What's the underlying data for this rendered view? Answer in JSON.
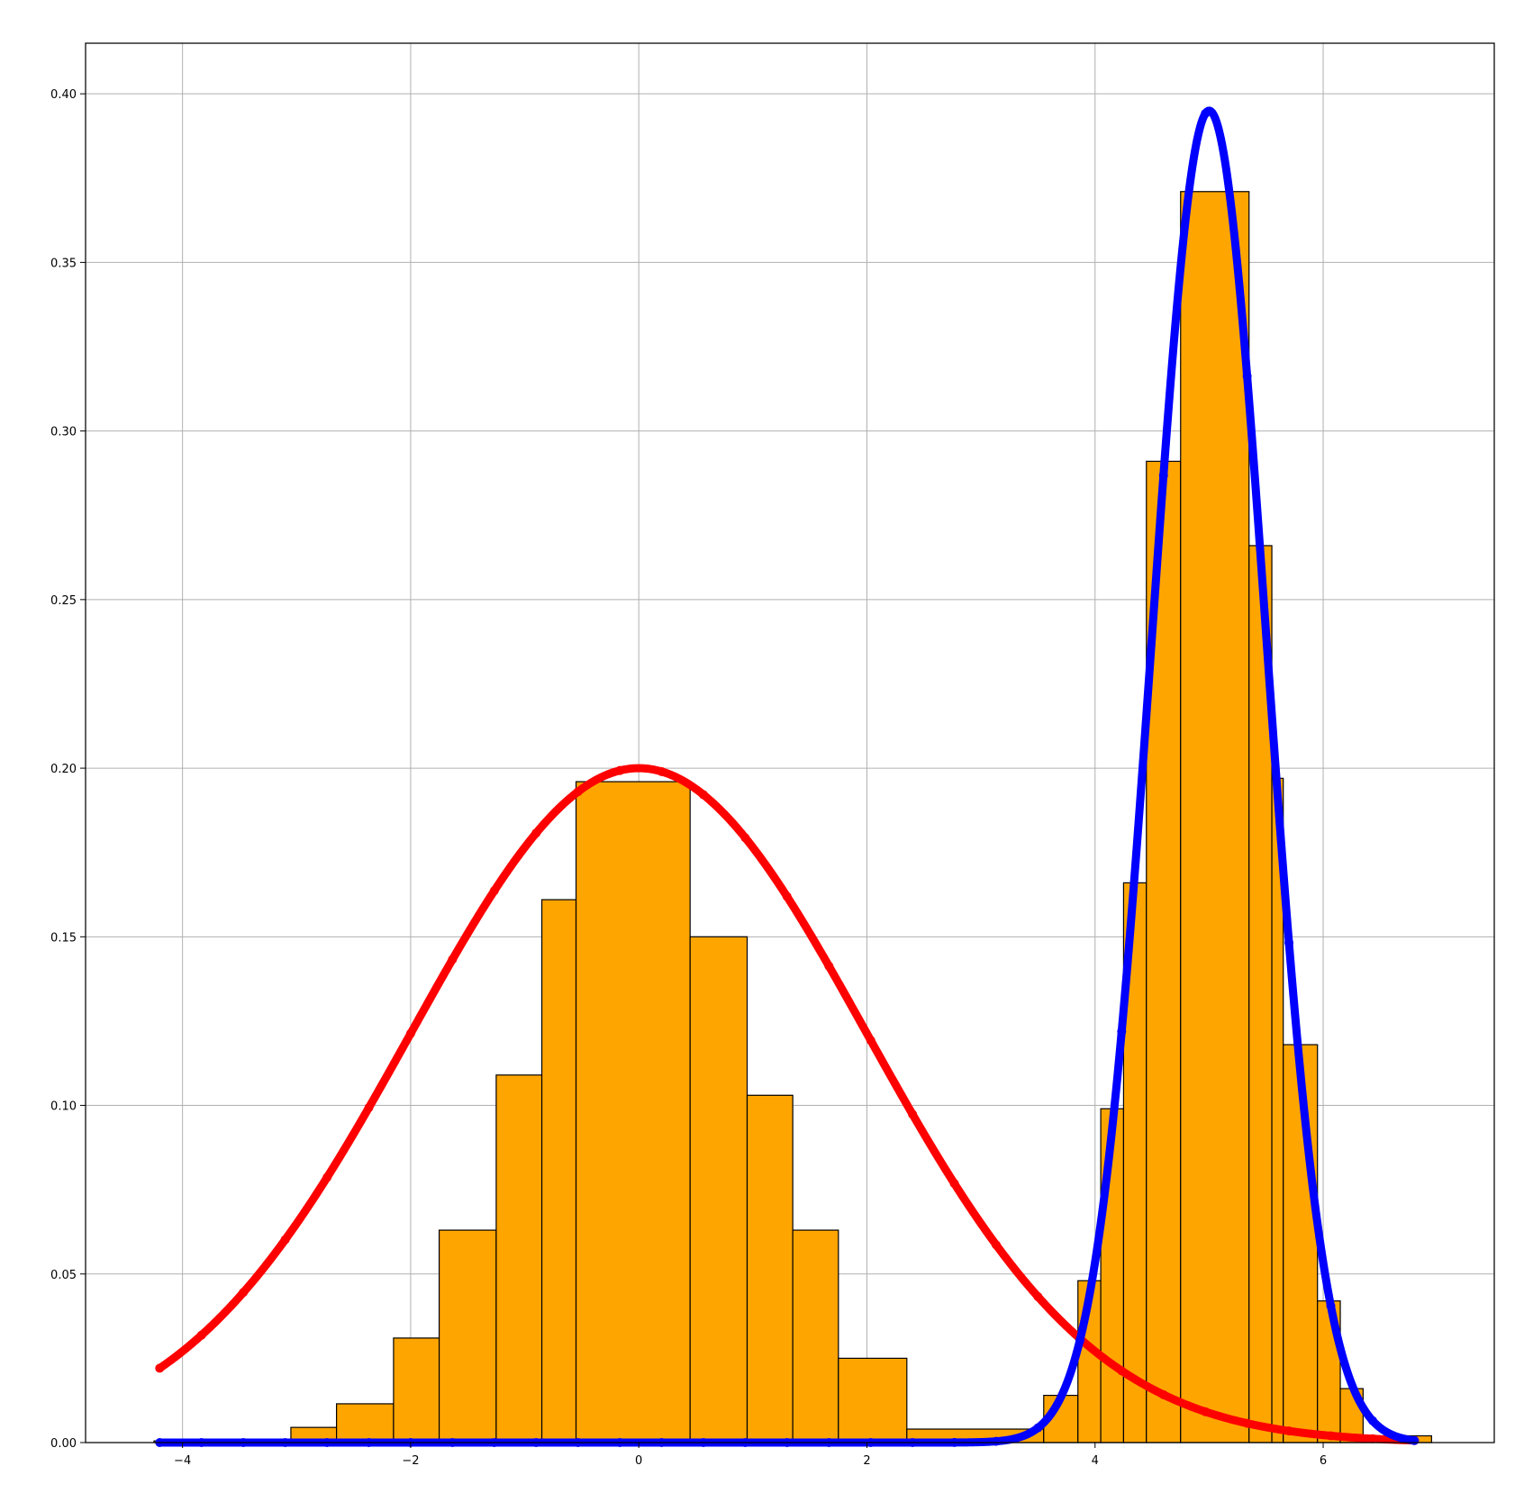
{
  "chart_data": {
    "type": "histogram",
    "title": "",
    "xlabel": "",
    "ylabel": "",
    "xlim": [
      -4.85,
      7.5
    ],
    "ylim": [
      0,
      0.415
    ],
    "grid": true,
    "legend": "none",
    "x_ticks": [
      -4,
      -2,
      0,
      2,
      4,
      6
    ],
    "x_tick_labels": [
      "−4",
      "−2",
      "0",
      "2",
      "4",
      "6"
    ],
    "y_ticks": [
      0.0,
      0.05,
      0.1,
      0.15,
      0.2,
      0.25,
      0.3,
      0.35,
      0.4
    ],
    "y_tick_labels": [
      "0.00",
      "0.05",
      "0.10",
      "0.15",
      "0.20",
      "0.25",
      "0.30",
      "0.35",
      "0.40"
    ],
    "histogram": {
      "color": "#ffa500",
      "edgecolor": "#000000",
      "bins": [
        {
          "left": -4.25,
          "right": -3.05,
          "value": 0.0005
        },
        {
          "left": -3.05,
          "right": -2.65,
          "value": 0.0045
        },
        {
          "left": -2.65,
          "right": -2.15,
          "value": 0.0115
        },
        {
          "left": -2.15,
          "right": -1.75,
          "value": 0.031
        },
        {
          "left": -1.75,
          "right": -1.25,
          "value": 0.063
        },
        {
          "left": -1.25,
          "right": -0.85,
          "value": 0.109
        },
        {
          "left": -0.85,
          "right": -0.55,
          "value": 0.161
        },
        {
          "left": -0.55,
          "right": 0.45,
          "value": 0.196
        },
        {
          "left": 0.45,
          "right": 0.95,
          "value": 0.15
        },
        {
          "left": 0.95,
          "right": 1.35,
          "value": 0.103
        },
        {
          "left": 1.35,
          "right": 1.75,
          "value": 0.063
        },
        {
          "left": 1.75,
          "right": 2.35,
          "value": 0.025
        },
        {
          "left": 2.35,
          "right": 3.55,
          "value": 0.004
        },
        {
          "left": 3.55,
          "right": 3.85,
          "value": 0.014
        },
        {
          "left": 3.85,
          "right": 4.05,
          "value": 0.048
        },
        {
          "left": 4.05,
          "right": 4.25,
          "value": 0.099
        },
        {
          "left": 4.25,
          "right": 4.45,
          "value": 0.166
        },
        {
          "left": 4.45,
          "right": 4.75,
          "value": 0.291
        },
        {
          "left": 4.75,
          "right": 5.35,
          "value": 0.371
        },
        {
          "left": 5.35,
          "right": 5.55,
          "value": 0.266
        },
        {
          "left": 5.55,
          "right": 5.65,
          "value": 0.197
        },
        {
          "left": 5.65,
          "right": 5.95,
          "value": 0.118
        },
        {
          "left": 5.95,
          "right": 6.15,
          "value": 0.042
        },
        {
          "left": 6.15,
          "right": 6.35,
          "value": 0.016
        },
        {
          "left": 6.35,
          "right": 6.95,
          "value": 0.002
        }
      ]
    },
    "series": [
      {
        "color": "#ff0000",
        "distribution": "normal",
        "mean": 0,
        "std": 2.0,
        "weight": 1.0,
        "x_range": [
          -4.2,
          6.8
        ],
        "peak": 0.2
      },
      {
        "color": "#0000ff",
        "distribution": "normal",
        "mean": 5,
        "std": 0.5,
        "weight": 0.5,
        "x_range": [
          -4.2,
          6.8
        ],
        "peak": 0.395
      }
    ]
  }
}
